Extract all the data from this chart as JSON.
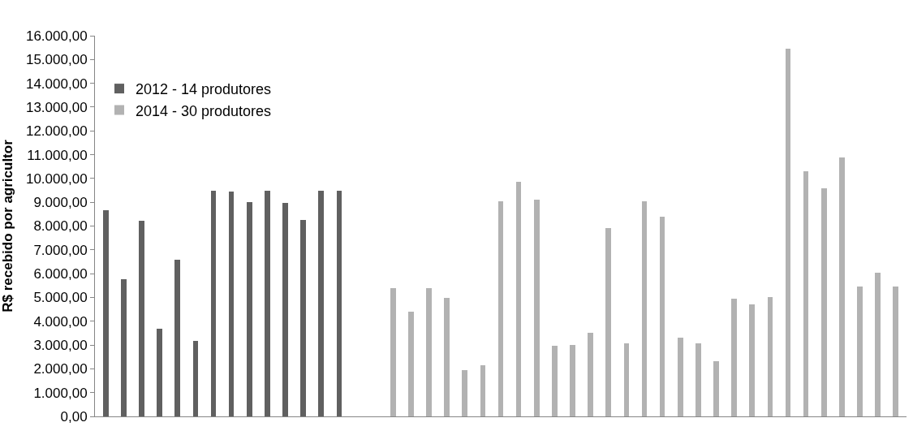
{
  "chart_data": {
    "type": "bar",
    "ylabel": "R$ recebido por agricultor",
    "categories": [
      null,
      null,
      null,
      null,
      null,
      null,
      null,
      null,
      null,
      null,
      null,
      null,
      null,
      null,
      null,
      null,
      null,
      null,
      null,
      null,
      null,
      null,
      null,
      null,
      null,
      null,
      null,
      null,
      null,
      null,
      null,
      null,
      null,
      null,
      null,
      null,
      null,
      null,
      null,
      null,
      null,
      null,
      null,
      null,
      null
    ],
    "series": [
      {
        "name": "2012 - 14 produtores",
        "color": "#606060",
        "values": [
          8680,
          5750,
          8210,
          3670,
          6590,
          3180,
          9480,
          9440,
          9010,
          9480,
          8980,
          8250,
          9480,
          9480,
          null,
          null,
          null,
          null,
          null,
          null,
          null,
          null,
          null,
          null,
          null,
          null,
          null,
          null,
          null,
          null,
          null,
          null,
          null,
          null,
          null,
          null,
          null,
          null,
          null,
          null,
          null,
          null,
          null,
          null,
          null
        ]
      },
      {
        "name": "2014 - 30 produtores",
        "color": "#b2b2b2",
        "values": [
          null,
          null,
          null,
          null,
          null,
          null,
          null,
          null,
          null,
          null,
          null,
          null,
          null,
          null,
          null,
          null,
          5380,
          4410,
          5380,
          4970,
          1930,
          2140,
          9050,
          9850,
          9110,
          2970,
          3000,
          3530,
          7920,
          3070,
          9050,
          8400,
          3300,
          3070,
          2330,
          4930,
          4700,
          5020,
          15460,
          10290,
          9580,
          10880,
          5470,
          6030,
          5470
        ]
      }
    ],
    "ylim": [
      0,
      16000
    ],
    "yticks": [
      {
        "value": 0,
        "label": "0,00"
      },
      {
        "value": 1000,
        "label": "1.000,00"
      },
      {
        "value": 2000,
        "label": "2.000,00"
      },
      {
        "value": 3000,
        "label": "3.000,00"
      },
      {
        "value": 4000,
        "label": "4.000,00"
      },
      {
        "value": 5000,
        "label": "5.000,00"
      },
      {
        "value": 6000,
        "label": "6.000,00"
      },
      {
        "value": 7000,
        "label": "7.000,00"
      },
      {
        "value": 8000,
        "label": "8.000,00"
      },
      {
        "value": 9000,
        "label": "9.000,00"
      },
      {
        "value": 10000,
        "label": "10.000,00"
      },
      {
        "value": 11000,
        "label": "11.000,00"
      },
      {
        "value": 12000,
        "label": "12.000,00"
      },
      {
        "value": 13000,
        "label": "13.000,00"
      },
      {
        "value": 14000,
        "label": "14.000,00"
      },
      {
        "value": 15000,
        "label": "15.000,00"
      },
      {
        "value": 16000,
        "label": "16.000,00"
      }
    ],
    "grid": false,
    "legend": "top",
    "tick_labels": "y"
  }
}
